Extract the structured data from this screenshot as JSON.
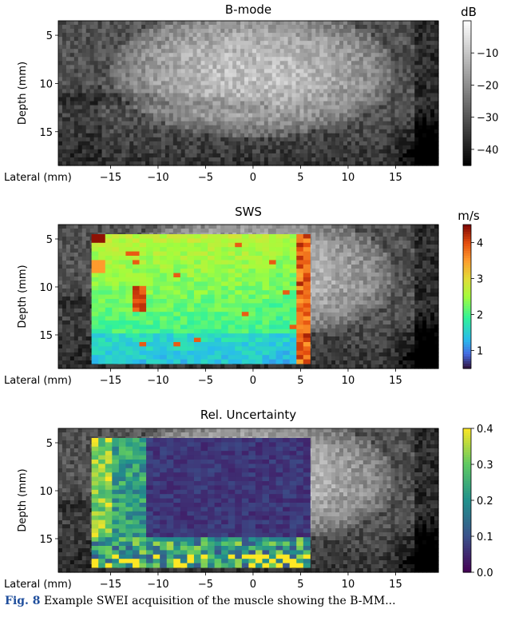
{
  "colors": {
    "frame": "#000000",
    "caption_label": "#1f4e9c",
    "bmode_cmap": [
      "#000000",
      "#ffffff"
    ],
    "sws_cmap": "jet",
    "uncertainty_cmap": "viridis"
  },
  "caption": {
    "label": "Fig. 8",
    "text": "Example SWEI acquisition of the muscle showing the B-MM..."
  },
  "chart_data": [
    {
      "type": "heatmap",
      "title": "B-mode",
      "xlabel": "Lateral (mm)",
      "ylabel": "Depth (mm)",
      "xlim": [
        -20.5,
        19.5
      ],
      "ylim": [
        18.5,
        3.5
      ],
      "xticks": [
        -15,
        -10,
        -5,
        0,
        5,
        10,
        15
      ],
      "yticks": [
        5,
        10,
        15
      ],
      "colorbar": {
        "label": "dB",
        "range": [
          -45,
          0
        ],
        "ticks": [
          -10,
          -20,
          -30,
          -40
        ]
      },
      "grid": false,
      "content": "grayscale ultrasound B-mode of muscle"
    },
    {
      "type": "heatmap",
      "title": "SWS",
      "xlabel": "Lateral (mm)",
      "ylabel": "Depth (mm)",
      "xlim": [
        -20.5,
        19.5
      ],
      "ylim": [
        18.5,
        3.5
      ],
      "xticks": [
        -15,
        -10,
        -5,
        0,
        5,
        10,
        15
      ],
      "yticks": [
        5,
        10,
        15
      ],
      "colorbar": {
        "label": "m/s",
        "range": [
          0.5,
          4.5
        ],
        "ticks": [
          1,
          2,
          3,
          4
        ]
      },
      "overlay_region": {
        "x": [
          -17,
          6
        ],
        "y": [
          4.5,
          18
        ]
      },
      "grid": false,
      "content": "shear wave speed map overlaid on B-mode"
    },
    {
      "type": "heatmap",
      "title": "Rel. Uncertainty",
      "xlabel": "Lateral (mm)",
      "ylabel": "Depth (mm)",
      "xlim": [
        -20.5,
        19.5
      ],
      "ylim": [
        18.5,
        3.5
      ],
      "xticks": [
        -15,
        -10,
        -5,
        0,
        5,
        10,
        15
      ],
      "yticks": [
        5,
        10,
        15
      ],
      "colorbar": {
        "label": "",
        "range": [
          0,
          0.4
        ],
        "ticks": [
          0.0,
          0.1,
          0.2,
          0.3,
          0.4
        ]
      },
      "overlay_region": {
        "x": [
          -17,
          6
        ],
        "y": [
          4.5,
          18
        ]
      },
      "grid": false,
      "content": "relative uncertainty map overlaid on B-mode"
    }
  ]
}
